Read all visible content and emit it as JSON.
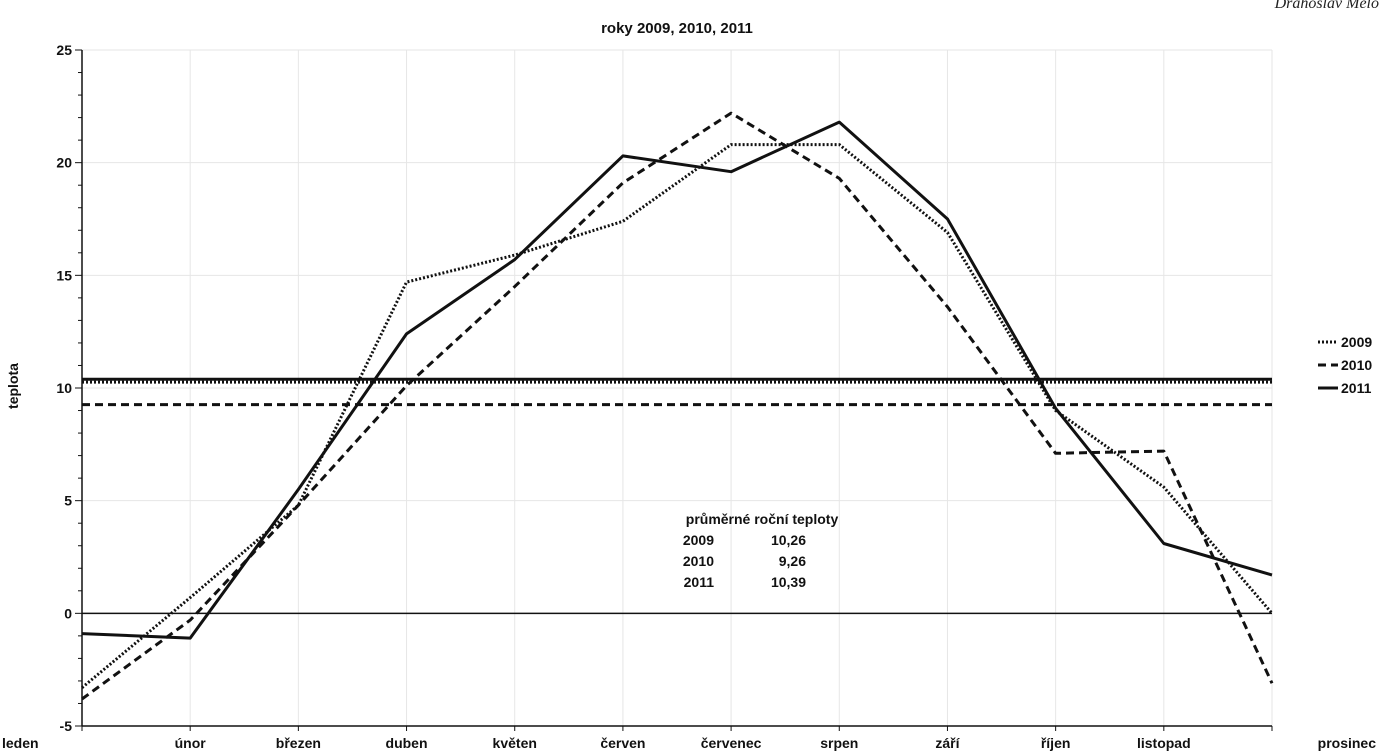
{
  "author": "Drahoslav Melo",
  "chart_data": {
    "type": "line",
    "title": "roky 2009, 2010, 2011",
    "ylabel": "teplota",
    "xlabel": "",
    "ylim": [
      -5,
      25
    ],
    "yticks": [
      -5,
      0,
      5,
      10,
      15,
      20,
      25
    ],
    "ytick_labels": [
      "-5",
      "0",
      "5",
      "10",
      "15",
      "20",
      "25"
    ],
    "grid": true,
    "legend_position": "right",
    "categories": [
      "leden",
      "únor",
      "březen",
      "duben",
      "květen",
      "červen",
      "červenec",
      "srpen",
      "září",
      "říjen",
      "listopad",
      "prosinec"
    ],
    "series": [
      {
        "name": "2009",
        "style": "dotted",
        "average": 10.26,
        "values": [
          -3.3,
          0.7,
          4.8,
          14.7,
          15.9,
          17.4,
          20.8,
          20.8,
          16.9,
          9.0,
          5.6,
          0.0
        ]
      },
      {
        "name": "2010",
        "style": "dashed",
        "average": 9.26,
        "values": [
          -3.8,
          -0.3,
          4.8,
          10.1,
          14.5,
          19.1,
          22.2,
          19.3,
          13.6,
          7.1,
          7.2,
          -3.1
        ]
      },
      {
        "name": "2011",
        "style": "solid",
        "average": 10.39,
        "values": [
          -0.9,
          -1.1,
          5.5,
          12.4,
          15.7,
          20.3,
          19.6,
          21.8,
          17.5,
          9.1,
          3.1,
          1.7
        ]
      }
    ],
    "annotation": {
      "heading": "průměrné roční teploty",
      "rows": [
        {
          "year": "2009",
          "value": "10,26"
        },
        {
          "year": "2010",
          "value": "9,26"
        },
        {
          "year": "2011",
          "value": "10,39"
        }
      ]
    }
  },
  "colors": {
    "line": "#111111",
    "grid": "#e6e6e6",
    "axis": "#111111"
  }
}
